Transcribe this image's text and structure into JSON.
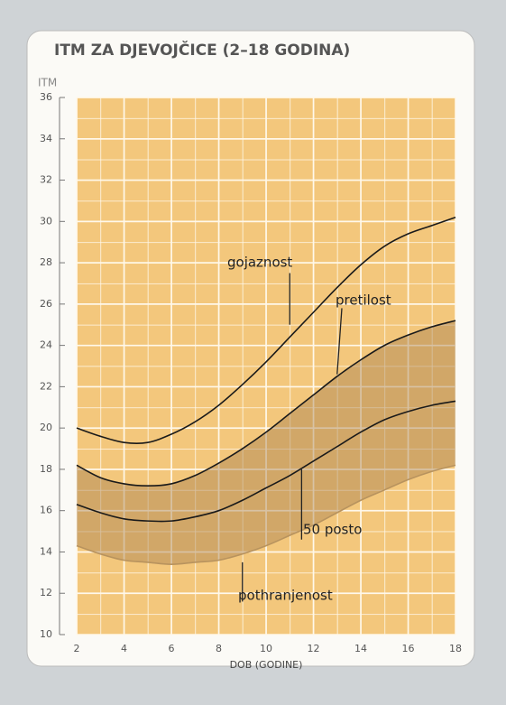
{
  "chart_data": {
    "type": "line",
    "title": "ITM ZA DJEVOJČICE (2–18 GODINA)",
    "y_label": "ITM",
    "x_label": "DOB (GODINE)",
    "x": [
      2,
      3,
      4,
      5,
      6,
      7,
      8,
      9,
      10,
      11,
      12,
      13,
      14,
      15,
      16,
      17,
      18
    ],
    "series": [
      {
        "name": "gojaznost",
        "color": "#1a1a1a",
        "values": [
          20.0,
          19.6,
          19.3,
          19.3,
          19.7,
          20.3,
          21.1,
          22.1,
          23.2,
          24.4,
          25.6,
          26.8,
          27.9,
          28.8,
          29.4,
          29.8,
          30.2
        ]
      },
      {
        "name": "pretilost",
        "color": "#1a1a1a",
        "values": [
          18.2,
          17.6,
          17.3,
          17.2,
          17.3,
          17.7,
          18.3,
          19.0,
          19.8,
          20.7,
          21.6,
          22.5,
          23.3,
          24.0,
          24.5,
          24.9,
          25.2
        ]
      },
      {
        "name": "50 posto",
        "color": "#1a1a1a",
        "values": [
          16.3,
          15.9,
          15.6,
          15.5,
          15.5,
          15.7,
          16.0,
          16.5,
          17.1,
          17.7,
          18.4,
          19.1,
          19.8,
          20.4,
          20.8,
          21.1,
          21.3
        ]
      },
      {
        "name": "pothranjenost",
        "color": "#b8935e",
        "values": [
          14.3,
          13.9,
          13.6,
          13.5,
          13.4,
          13.5,
          13.6,
          13.9,
          14.3,
          14.8,
          15.3,
          15.9,
          16.5,
          17.0,
          17.5,
          17.9,
          18.2
        ]
      }
    ],
    "xlim": [
      2,
      18
    ],
    "xticks": [
      2,
      4,
      6,
      8,
      10,
      12,
      14,
      16,
      18
    ],
    "ylim": [
      10,
      36
    ],
    "yticks": [
      10,
      12,
      14,
      16,
      18,
      20,
      22,
      24,
      26,
      28,
      30,
      32,
      34,
      36
    ],
    "grid": true
  }
}
